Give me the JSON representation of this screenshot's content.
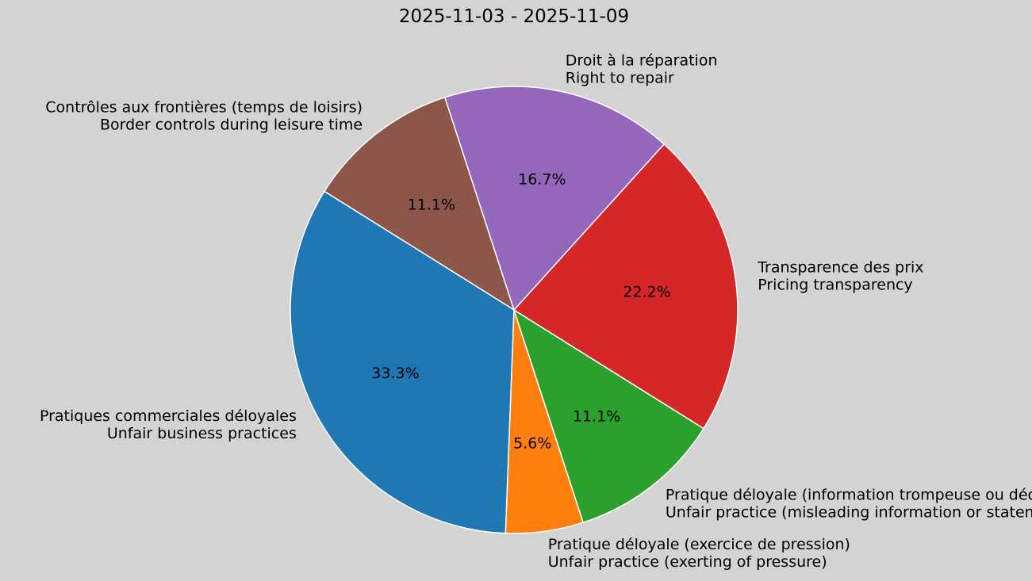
{
  "chart_data": {
    "type": "pie",
    "title": "2025-11-03 - 2025-11-09",
    "slices": [
      {
        "label_fr": "Contrôles aux frontières (temps de loisirs)",
        "label_en": "Border controls during leisure time",
        "value": 11.1,
        "pct_label": "11.1%",
        "color": "#8c564b"
      },
      {
        "label_fr": "Pratiques commerciales déloyales",
        "label_en": "Unfair business practices",
        "value": 33.3,
        "pct_label": "33.3%",
        "color": "#1f77b4"
      },
      {
        "label_fr": "Pratique déloyale (exercice de pression)",
        "label_en": "Unfair practice (exerting of pressure)",
        "value": 5.6,
        "pct_label": "5.6%",
        "color": "#ff7f0e"
      },
      {
        "label_fr": "Pratique déloyale (information trompeuse ou déclaration erronée)",
        "label_en": "Unfair practice (misleading information or statement)",
        "value": 11.1,
        "pct_label": "11.1%",
        "color": "#2ca02c"
      },
      {
        "label_fr": "Transparence des prix",
        "label_en": "Pricing transparency",
        "value": 22.2,
        "pct_label": "22.2%",
        "color": "#d62728"
      },
      {
        "label_fr": "Droit à la réparation",
        "label_en": "Right to repair",
        "value": 16.7,
        "pct_label": "16.7%",
        "color": "#9467bd"
      }
    ],
    "start_angle_deg": 108,
    "direction": "counterclockwise"
  }
}
